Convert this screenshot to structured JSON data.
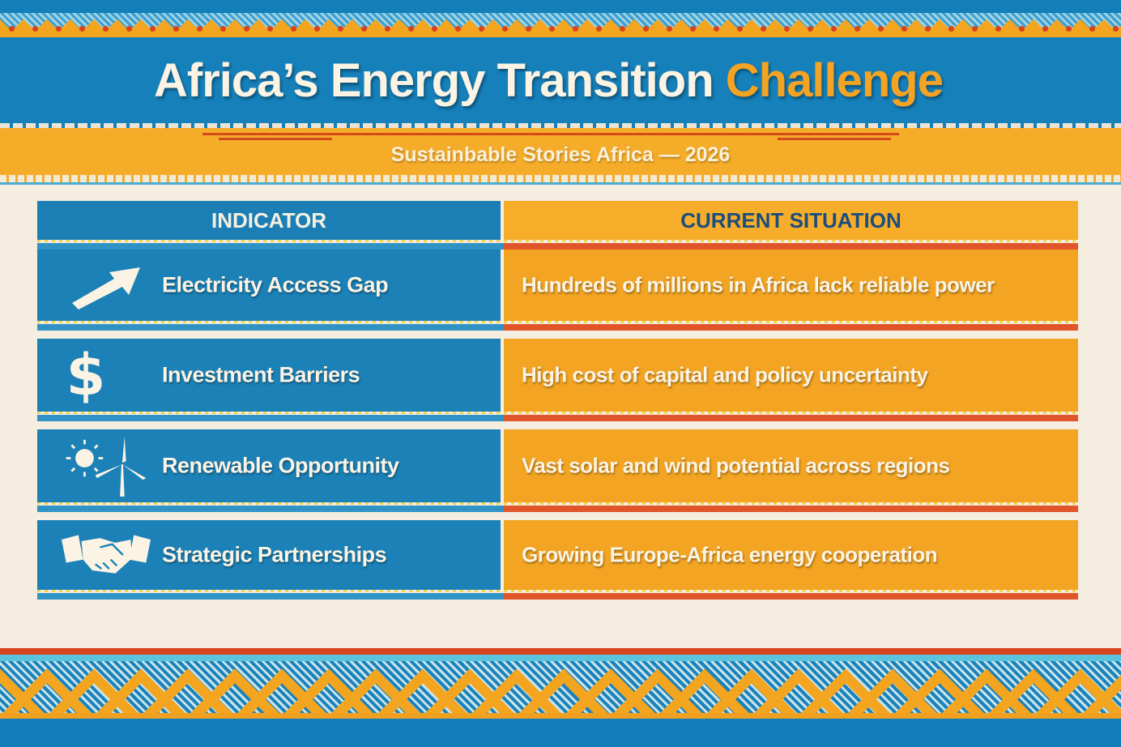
{
  "header": {
    "title_main": "Africa’s Energy Transition",
    "title_accent": "Challenge",
    "subtitle": "Sustainbable Stories Africa — 2026"
  },
  "table": {
    "columns": [
      "INDICATOR",
      "CURRENT SITUATION"
    ],
    "rows": [
      {
        "icon": "arrow-up-right-icon",
        "indicator": "Electricity Access Gap",
        "situation": "Hundreds of millions in Africa lack reliable power"
      },
      {
        "icon": "dollar-icon",
        "indicator": "Investment Barriers",
        "situation": "High cost of capital and policy uncertainty"
      },
      {
        "icon": "sun-wind-turbine-icon",
        "indicator": "Renewable Opportunity",
        "situation": "Vast solar and wind potential across regions"
      },
      {
        "icon": "handshake-icon",
        "indicator": "Strategic Partnerships",
        "situation": "Growing Europe-Africa energy cooperation"
      }
    ]
  },
  "colors": {
    "blue": "#1b81b7",
    "orange": "#f2a422",
    "red": "#d8431d",
    "cream": "#f4ede0"
  }
}
